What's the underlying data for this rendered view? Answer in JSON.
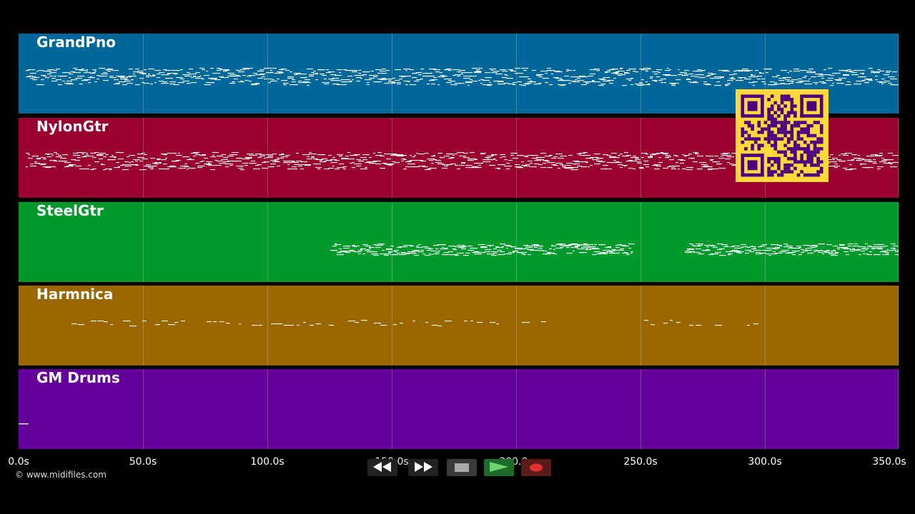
{
  "tracks": [
    {
      "name": "GrandPno",
      "color": "#00679a",
      "density": "dense"
    },
    {
      "name": "NylonGtr",
      "color": "#990030",
      "density": "dense"
    },
    {
      "name": "SteelGtr",
      "color": "#009a2b",
      "density": "partial"
    },
    {
      "name": "Harmnica",
      "color": "#9a6600",
      "density": "sparse"
    },
    {
      "name": "GM Drums",
      "color": "#66009a",
      "density": "minimal"
    }
  ],
  "timeline": {
    "ticks": [
      "0.0s",
      "50.0s",
      "100.0s",
      "150.0s",
      "200.0s",
      "250.0s",
      "300.0s",
      "350.0s"
    ]
  },
  "copyright": "© www.midifiles.com",
  "transport": {
    "buttons": [
      {
        "icon": "rewind-icon"
      },
      {
        "icon": "fast-forward-icon"
      },
      {
        "icon": "stop-icon"
      },
      {
        "icon": "play-icon"
      },
      {
        "icon": "record-icon"
      }
    ]
  },
  "qr": {
    "color": "#ffd83a",
    "ink": "#4b0082"
  }
}
